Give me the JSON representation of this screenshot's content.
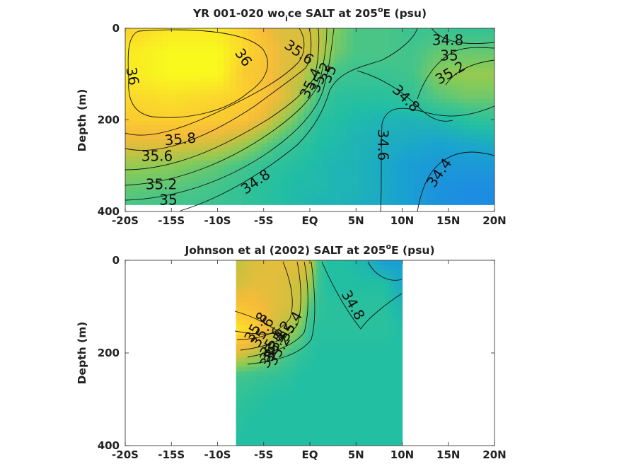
{
  "chart_data": [
    {
      "type": "contour",
      "title": {
        "prefix": "YR 001-020 wo",
        "subscript": "i",
        "middle": "ce SALT at 205",
        "superscript": "o",
        "suffix": "E (psu)"
      },
      "xlabel": "",
      "ylabel": "Depth (m)",
      "x_ticks": [
        "-20S",
        "-15S",
        "-10S",
        "-5S",
        "EQ",
        "5N",
        "10N",
        "15N",
        "20N"
      ],
      "y_ticks": [
        "0",
        "200",
        "400"
      ],
      "xlim": [
        -20,
        20
      ],
      "ylim": [
        400,
        0
      ],
      "y_reversed": true,
      "data_extent": {
        "x": [
          -20,
          20
        ],
        "depth": [
          0,
          385
        ]
      },
      "contour_labels": [
        "36",
        "36",
        "35.6",
        "35.4",
        "35.2",
        "35",
        "35.8",
        "35.6",
        "35.2",
        "35",
        "34.8",
        "34.8",
        "34.8",
        "35",
        "35.2",
        "34.6",
        "34.4"
      ],
      "salinity_profile": {
        "x": [
          -20,
          -15,
          -10,
          -7,
          -5,
          -3,
          -1,
          1,
          3,
          5,
          8,
          11,
          14,
          17,
          20
        ],
        "depth": [
          0,
          50,
          100,
          150,
          200,
          250,
          300,
          350,
          385
        ],
        "values": [
          [
            35.95,
            36.1,
            36.1,
            35.95,
            35.7,
            35.55,
            35.55,
            35.4,
            35.15,
            34.95,
            34.95,
            34.85,
            34.85,
            34.8,
            34.8
          ],
          [
            36.1,
            36.2,
            36.2,
            36.0,
            35.85,
            35.6,
            35.55,
            35.4,
            35.1,
            34.95,
            34.95,
            34.9,
            35.05,
            35.05,
            35.05
          ],
          [
            36.1,
            36.2,
            36.2,
            35.9,
            35.8,
            35.6,
            35.45,
            35.1,
            34.9,
            34.85,
            34.85,
            34.9,
            35.2,
            35.25,
            35.25
          ],
          [
            36.0,
            36.05,
            36.0,
            35.95,
            35.8,
            35.6,
            35.3,
            34.9,
            34.75,
            34.75,
            34.75,
            34.8,
            35.0,
            35.1,
            35.1
          ],
          [
            35.9,
            35.95,
            35.9,
            35.8,
            35.6,
            35.3,
            35.0,
            34.75,
            34.7,
            34.65,
            34.6,
            34.6,
            34.65,
            34.75,
            34.8
          ],
          [
            35.6,
            35.6,
            35.5,
            35.3,
            35.1,
            34.9,
            34.8,
            34.7,
            34.65,
            34.6,
            34.55,
            34.5,
            34.45,
            34.5,
            34.55
          ],
          [
            35.25,
            35.2,
            35.05,
            34.9,
            34.8,
            34.75,
            34.7,
            34.65,
            34.6,
            34.6,
            34.5,
            34.4,
            34.35,
            34.35,
            34.35
          ],
          [
            35.05,
            35.0,
            34.9,
            34.8,
            34.75,
            34.7,
            34.65,
            34.65,
            34.6,
            34.6,
            34.5,
            34.4,
            34.3,
            34.25,
            34.25
          ],
          [
            34.95,
            34.9,
            34.85,
            34.8,
            34.75,
            34.7,
            34.65,
            34.6,
            34.6,
            34.55,
            34.5,
            34.4,
            34.3,
            34.25,
            34.25
          ]
        ]
      }
    },
    {
      "type": "contour",
      "title": {
        "prefix": "Johnson et al (2002) SALT at 205",
        "superscript": "o",
        "suffix": "E (psu)"
      },
      "xlabel": "",
      "ylabel": "Depth (m)",
      "x_ticks": [
        "-20S",
        "-15S",
        "-10S",
        "-5S",
        "EQ",
        "5N",
        "10N",
        "15N",
        "20N"
      ],
      "y_ticks": [
        "0",
        "200",
        "400"
      ],
      "xlim": [
        -20,
        20
      ],
      "ylim": [
        400,
        0
      ],
      "y_reversed": true,
      "data_extent": {
        "x": [
          -8,
          10
        ],
        "depth": [
          0,
          400
        ]
      },
      "contour_labels": [
        "34.8",
        "35.4",
        "35",
        "35.2",
        "35.8",
        "35.6",
        "35.6",
        "35.4",
        "35.2",
        "35"
      ],
      "salinity_profile": {
        "x": [
          -8,
          -6,
          -4,
          -2,
          -1,
          0,
          1,
          2,
          4,
          6,
          8,
          10
        ],
        "depth": [
          0,
          50,
          100,
          150,
          200,
          250,
          300,
          350,
          400
        ],
        "values": [
          [
            35.4,
            35.55,
            35.6,
            35.6,
            35.6,
            35.5,
            34.9,
            34.7,
            34.7,
            34.6,
            34.4,
            34.4
          ],
          [
            35.5,
            35.6,
            35.6,
            35.5,
            35.45,
            35.3,
            34.85,
            34.7,
            34.7,
            34.7,
            34.7,
            34.5
          ],
          [
            35.8,
            35.75,
            35.6,
            35.5,
            35.4,
            35.0,
            34.8,
            34.75,
            34.75,
            34.75,
            34.75,
            34.6
          ],
          [
            36.1,
            35.95,
            35.5,
            35.3,
            35.1,
            34.8,
            34.75,
            34.75,
            34.75,
            34.75,
            34.75,
            34.7
          ],
          [
            35.6,
            35.4,
            35.15,
            34.9,
            34.8,
            34.75,
            34.7,
            34.7,
            34.7,
            34.7,
            34.7,
            34.7
          ],
          [
            34.9,
            34.85,
            34.8,
            34.75,
            34.7,
            34.7,
            34.7,
            34.7,
            34.7,
            34.7,
            34.7,
            34.7
          ],
          [
            34.8,
            34.75,
            34.7,
            34.7,
            34.7,
            34.7,
            34.7,
            34.7,
            34.7,
            34.7,
            34.7,
            34.7
          ],
          [
            34.75,
            34.7,
            34.7,
            34.7,
            34.7,
            34.7,
            34.7,
            34.7,
            34.7,
            34.7,
            34.7,
            34.7
          ],
          [
            34.7,
            34.7,
            34.7,
            34.7,
            34.7,
            34.7,
            34.7,
            34.7,
            34.7,
            34.7,
            34.7,
            34.7
          ]
        ]
      }
    }
  ],
  "colormap": {
    "range": [
      34.2,
      36.2
    ],
    "stops": [
      "#1e88e5",
      "#1aa3cf",
      "#22bfa3",
      "#4ac586",
      "#8acb56",
      "#c9c140",
      "#f5bb3a",
      "#fbcf2f",
      "#f9f91e"
    ]
  }
}
